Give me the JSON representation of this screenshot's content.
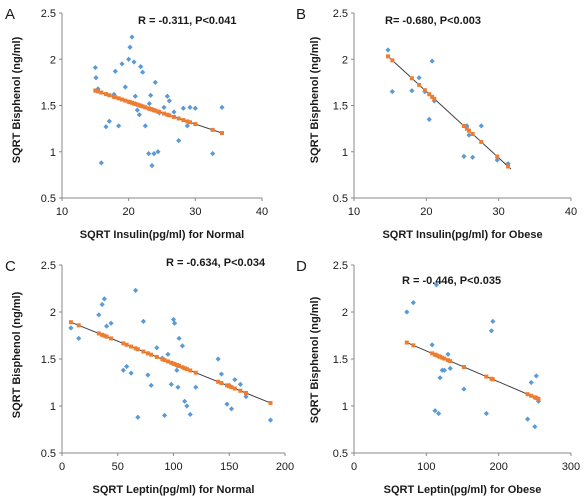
{
  "chart_data": [
    {
      "type": "scatter",
      "panel_label": "A",
      "annotation": "R =  -0.311, P<0.041",
      "xlabel": "SQRT Insulin(pg/ml)  for Normal",
      "ylabel": "SQRT Bisphenol (ng/ml)",
      "xlim": [
        10,
        40
      ],
      "ylim": [
        0.5,
        2.5
      ],
      "x_ticks": [
        "10",
        "20",
        "30",
        "40"
      ],
      "y_ticks": [
        "0.5",
        "1",
        "1.5",
        "2",
        "2.5"
      ],
      "colors": {
        "points": "#5b9bd5",
        "fit": "#ed7d31",
        "line": "#404040"
      },
      "fit": {
        "slope": -0.0242,
        "intercept": 2.025,
        "x_range": [
          14.8,
          34.2
        ]
      },
      "series": [
        {
          "x": [
            15.0,
            15.1,
            15.4,
            15.9,
            16.6,
            17.1,
            17.8,
            18.0,
            18.5,
            19.0,
            19.5,
            20.0,
            20.2,
            20.5,
            20.8,
            21.0,
            21.3,
            21.6,
            21.8,
            22.1,
            22.5,
            23.0,
            23.1,
            23.3,
            23.5,
            23.8,
            24.0,
            24.4,
            24.6,
            25.3,
            25.8,
            26.1,
            26.8,
            27.5,
            28.2,
            28.8,
            29.2,
            30.0,
            32.6,
            34.0
          ],
          "y": [
            1.91,
            1.8,
            1.68,
            0.88,
            1.27,
            1.33,
            1.62,
            1.87,
            1.28,
            1.95,
            1.7,
            2.0,
            2.13,
            2.24,
            1.97,
            1.6,
            1.45,
            1.4,
            1.92,
            1.86,
            1.28,
            0.98,
            1.52,
            1.61,
            0.85,
            0.98,
            1.75,
            1.0,
            1.42,
            1.48,
            1.6,
            1.55,
            1.43,
            1.12,
            1.47,
            1.28,
            1.48,
            1.47,
            0.98,
            1.48
          ]
        }
      ]
    },
    {
      "type": "scatter",
      "panel_label": "B",
      "annotation": "R=  -0.680, P<0.003",
      "xlabel": "SQRT Insulin(pg/ml)  for Obese",
      "ylabel": "SQRT Bisphenol (ng/ml)",
      "xlim": [
        10,
        40
      ],
      "ylim": [
        0.5,
        2.5
      ],
      "x_ticks": [
        "10",
        "20",
        "30",
        "40"
      ],
      "y_ticks": [
        "0.5",
        "1",
        "1.5",
        "2",
        "2.5"
      ],
      "colors": {
        "points": "#5b9bd5",
        "fit": "#ed7d31",
        "line": "#404040"
      },
      "fit": {
        "slope": -0.0717,
        "intercept": 3.085,
        "x_range": [
          14.7,
          31.7
        ]
      },
      "series": [
        {
          "x": [
            14.7,
            15.3,
            18.0,
            19.0,
            19.8,
            20.4,
            20.8,
            21.1,
            25.2,
            25.6,
            25.9,
            26.4,
            27.6,
            29.8,
            31.3
          ],
          "y": [
            2.1,
            1.65,
            1.66,
            1.8,
            1.65,
            1.35,
            1.98,
            1.55,
            0.95,
            1.28,
            1.18,
            0.94,
            1.28,
            0.91,
            0.87
          ]
        }
      ]
    },
    {
      "type": "scatter",
      "panel_label": "C",
      "annotation": "R =  -0.634, P<0.034",
      "xlabel": "SQRT Leptin(pg/ml)  for Normal",
      "ylabel": "SQRT Bisphenol (ng/ml)",
      "xlim": [
        0,
        200
      ],
      "ylim": [
        0.5,
        2.5
      ],
      "x_ticks": [
        "0",
        "50",
        "100",
        "150",
        "200"
      ],
      "y_ticks": [
        "0.5",
        "1",
        "1.5",
        "2",
        "2.5"
      ],
      "colors": {
        "points": "#5b9bd5",
        "fit": "#ed7d31",
        "line": "#404040"
      },
      "fit": {
        "slope": -0.0048,
        "intercept": 1.93,
        "x_range": [
          8,
          187
        ]
      },
      "series": [
        {
          "x": [
            8,
            15,
            33,
            36,
            38,
            40,
            44,
            55,
            58,
            62,
            66,
            68,
            73,
            77,
            80,
            85,
            90,
            92,
            95,
            98,
            100,
            101,
            103,
            104,
            105,
            108,
            110,
            112,
            115,
            120,
            140,
            143,
            148,
            150,
            152,
            155,
            160,
            165,
            187
          ],
          "y": [
            1.83,
            1.72,
            1.97,
            2.08,
            2.14,
            1.85,
            1.88,
            1.38,
            1.42,
            1.35,
            2.23,
            0.88,
            1.9,
            1.33,
            1.22,
            1.62,
            1.51,
            0.9,
            1.55,
            1.23,
            1.92,
            1.88,
            1.38,
            1.2,
            1.72,
            1.64,
            1.05,
            1.0,
            0.91,
            1.2,
            1.5,
            1.34,
            1.02,
            1.22,
            0.97,
            1.28,
            1.23,
            1.1,
            0.85
          ]
        }
      ]
    },
    {
      "type": "scatter",
      "panel_label": "D",
      "annotation": "R =  -0.446, P<0.035",
      "xlabel": "SQRT Leptin(pg/ml)  for Obese",
      "ylabel": "SQRT Bisphenol (ng/ml)",
      "xlim": [
        0,
        300
      ],
      "ylim": [
        0.5,
        2.5
      ],
      "x_ticks": [
        "0",
        "100",
        "200",
        "300"
      ],
      "y_ticks": [
        "0.5",
        "1",
        "1.5",
        "2",
        "2.5"
      ],
      "colors": {
        "points": "#5b9bd5",
        "fit": "#ed7d31",
        "line": "#404040"
      },
      "fit": {
        "slope": -0.00329,
        "intercept": 1.915,
        "x_range": [
          73,
          256
        ]
      },
      "series": [
        {
          "x": [
            73,
            82,
            108,
            112,
            114,
            117,
            119,
            122,
            125,
            130,
            133,
            152,
            183,
            190,
            192,
            240,
            245,
            250,
            252,
            255
          ],
          "y": [
            2.0,
            2.1,
            1.65,
            0.95,
            2.29,
            0.92,
            1.3,
            1.38,
            1.38,
            1.55,
            1.4,
            1.18,
            0.92,
            1.8,
            1.9,
            0.86,
            1.25,
            0.78,
            1.32,
            1.05
          ]
        }
      ]
    }
  ]
}
